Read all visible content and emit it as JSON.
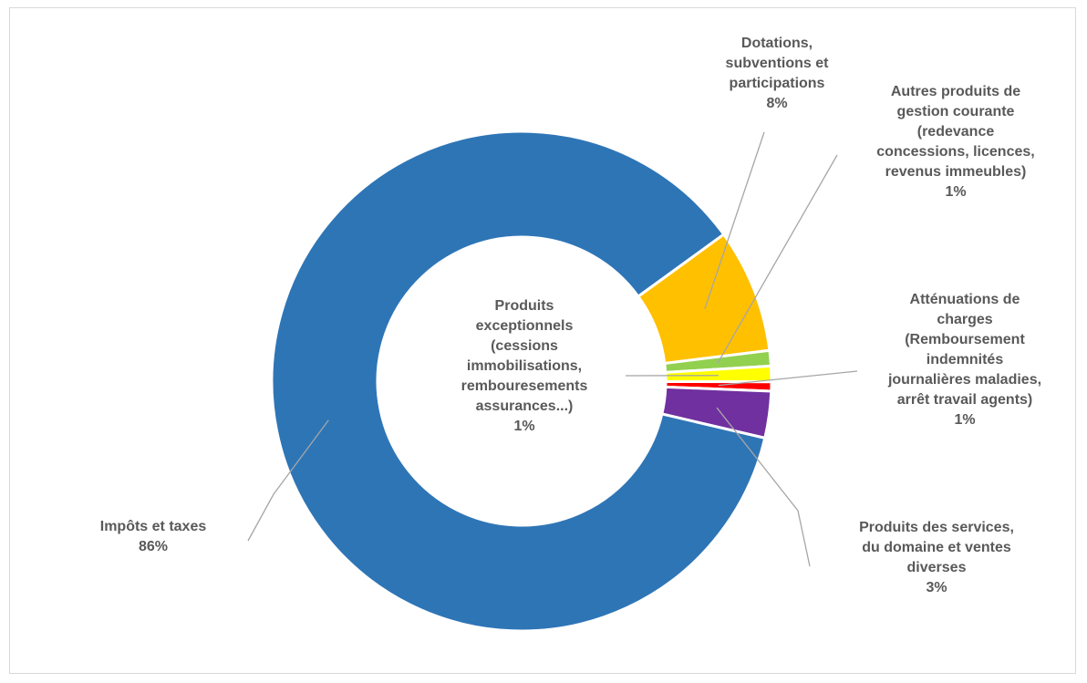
{
  "chart_data": {
    "type": "pie",
    "subtype": "doughnut",
    "title": "",
    "legend": "none",
    "slices": [
      {
        "name": "Dotations, subventions et participations",
        "lines": [
          "Dotations,",
          "subventions et",
          "participations"
        ],
        "value": 8,
        "label": "8%",
        "color": "#FFC000"
      },
      {
        "name": "Autres produits de gestion courante (redevance concessions, licences, revenus immeubles)",
        "lines": [
          "Autres produits de",
          "gestion courante",
          "(redevance",
          "concessions, licences,",
          "revenus immeubles)"
        ],
        "value": 1,
        "label": "1%",
        "color": "#92D050"
      },
      {
        "name": "Produits exceptionnels (cessions immobilisations, rembouresements assurances...)",
        "lines": [
          "Produits",
          "exceptionnels",
          "(cessions",
          "immobilisations,",
          "rembouresements",
          "assurances...)"
        ],
        "value": 1,
        "label": "1%",
        "color": "#FFFF00"
      },
      {
        "name": "Atténuations de charges (Remboursement indemnités journalières maladies, arrêt travail agents)",
        "lines": [
          "Atténuations de",
          "charges",
          "(Remboursement",
          "indemnités",
          "journalières maladies,",
          "arrêt travail agents)"
        ],
        "value": 0.6,
        "label": "1%",
        "color": "#FF0000"
      },
      {
        "name": "Produits des services, du domaine et ventes diverses",
        "lines": [
          "Produits des services,",
          "du domaine et ventes",
          "diverses"
        ],
        "value": 3,
        "label": "3%",
        "color": "#7030A0"
      },
      {
        "name": "Impôts et taxes",
        "lines": [
          "Impôts et taxes"
        ],
        "value": 86,
        "label": "86%",
        "color": "#2E75B6"
      }
    ]
  }
}
